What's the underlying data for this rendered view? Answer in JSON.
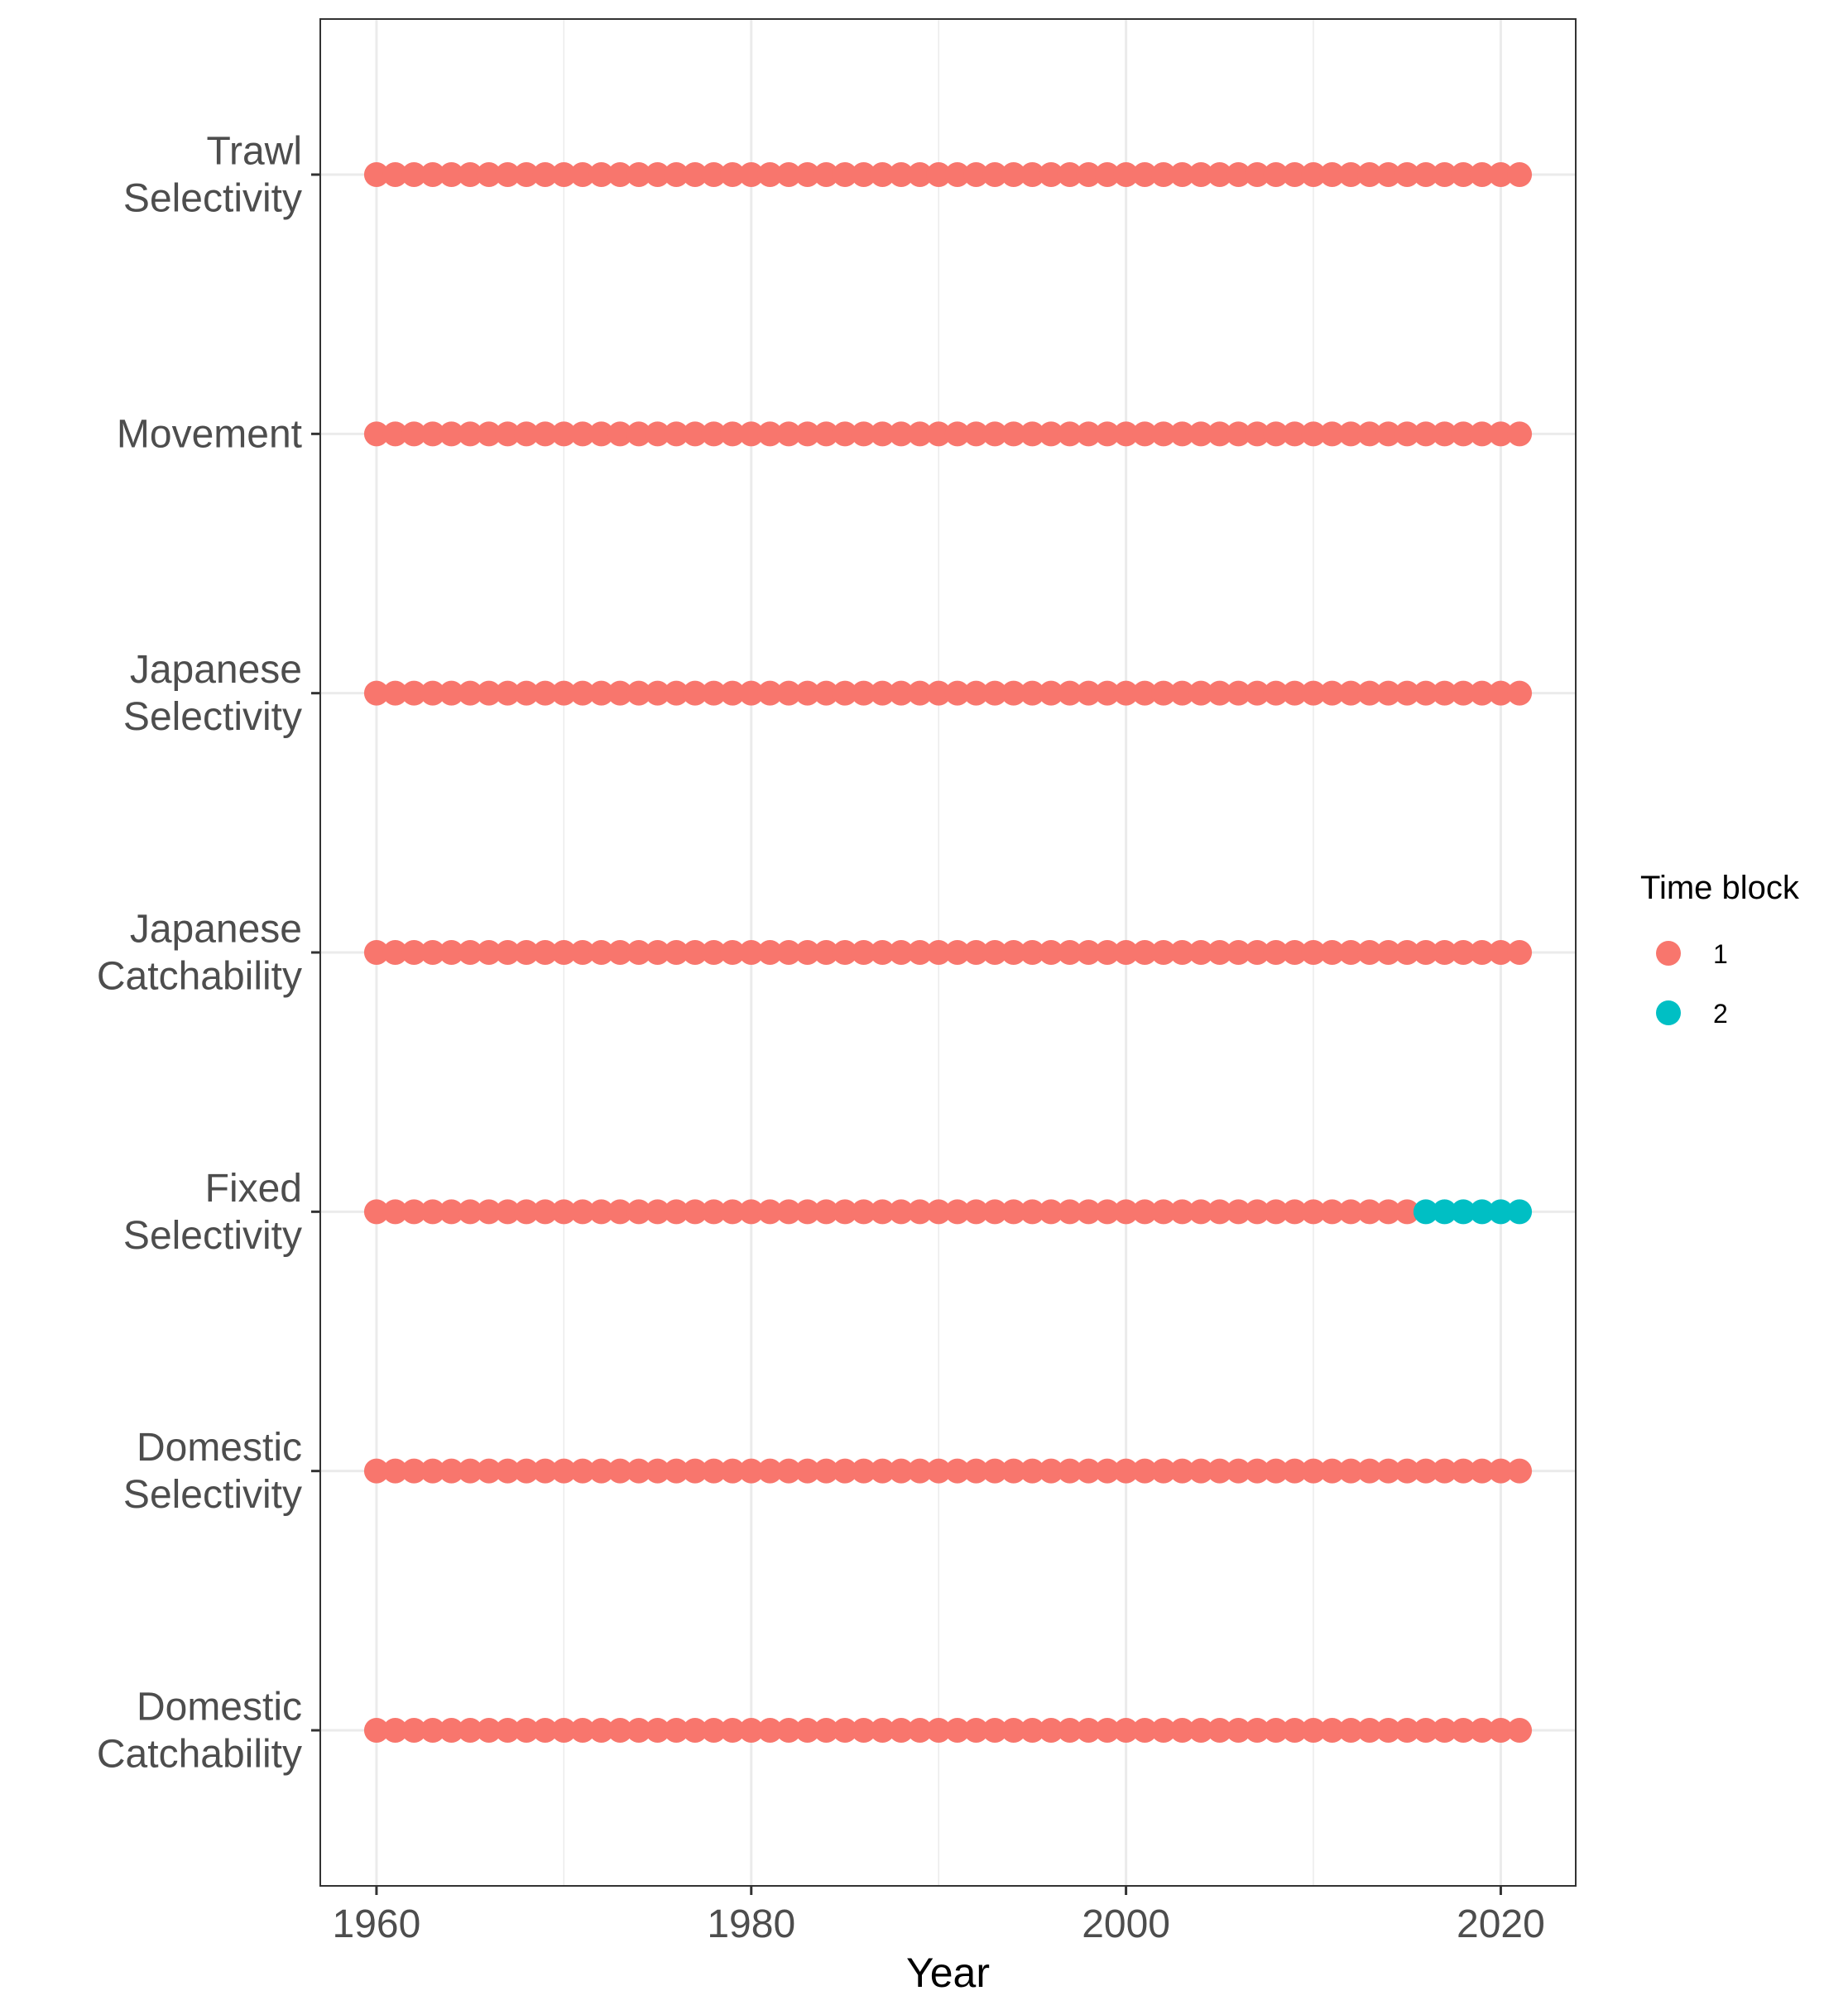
{
  "chart_data": {
    "type": "scatter",
    "title": "",
    "xlabel": "Year",
    "ylabel": "",
    "xlim": [
      1957,
      2024
    ],
    "x_ticks": [
      1960,
      1980,
      2000,
      2020
    ],
    "x_tick_labels": [
      "1960",
      "1980",
      "2000",
      "2020"
    ],
    "categories": [
      "Trawl\nSelectivity",
      "Movement",
      "Japanese\nSelectivity",
      "Japanese\nCatchability",
      "Fixed\nSelectivity",
      "Domestic\nSelectivity",
      "Domestic\nCatchability"
    ],
    "x": {
      "start": 1960,
      "end": 2021,
      "step": 1
    },
    "series": [
      {
        "category": "Trawl\nSelectivity",
        "blocks": [
          {
            "block": "1",
            "from": 1960,
            "to": 2021
          }
        ]
      },
      {
        "category": "Movement",
        "blocks": [
          {
            "block": "1",
            "from": 1960,
            "to": 2021
          }
        ]
      },
      {
        "category": "Japanese\nSelectivity",
        "blocks": [
          {
            "block": "1",
            "from": 1960,
            "to": 2021
          }
        ]
      },
      {
        "category": "Japanese\nCatchability",
        "blocks": [
          {
            "block": "1",
            "from": 1960,
            "to": 2021
          }
        ]
      },
      {
        "category": "Fixed\nSelectivity",
        "blocks": [
          {
            "block": "1",
            "from": 1960,
            "to": 2015
          },
          {
            "block": "2",
            "from": 2016,
            "to": 2021
          }
        ]
      },
      {
        "category": "Domestic\nSelectivity",
        "blocks": [
          {
            "block": "1",
            "from": 1960,
            "to": 2021
          }
        ]
      },
      {
        "category": "Domestic\nCatchability",
        "blocks": [
          {
            "block": "1",
            "from": 1960,
            "to": 2021
          }
        ]
      }
    ],
    "legend": {
      "title": "Time block",
      "position": "right",
      "items": [
        {
          "label": "1",
          "color": "#F8766D"
        },
        {
          "label": "2",
          "color": "#00BFC4"
        }
      ]
    },
    "grid": true
  }
}
